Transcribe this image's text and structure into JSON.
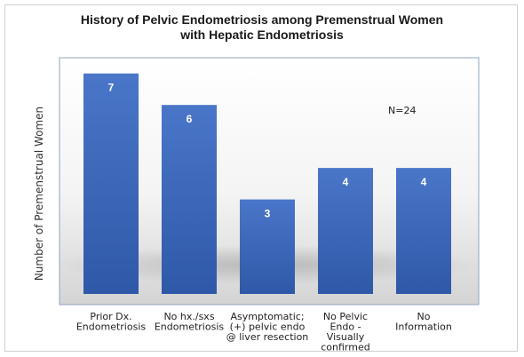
{
  "chart_data": {
    "type": "bar",
    "title_lines": [
      "History of Pelvic Endometriosis among Premenstrual Women",
      "with Hepatic Endometriosis"
    ],
    "ylabel": "Number of Premenstrual Women",
    "xlabel": "",
    "annotation": "N=24",
    "categories": [
      [
        "Prior Dx.",
        "Endometriosis"
      ],
      [
        "No hx./sxs",
        "Endometriosis"
      ],
      [
        "Asymptomatic;",
        "(+) pelvic endo",
        "@ liver resection"
      ],
      [
        "No Pelvic",
        "Endo -",
        "Visually",
        "confirmed"
      ],
      [
        "No",
        "Information"
      ]
    ],
    "values": [
      7,
      6,
      3,
      4,
      4
    ],
    "ylim": [
      0,
      7.5
    ],
    "grid": false,
    "colors": {
      "bar_top": "#4a76c9",
      "bar_bottom": "#2f58a8",
      "plot_bg_top": "#ffffff",
      "plot_bg_bottom": "#d4d4d4",
      "plot_border": "#8fa3c4"
    }
  }
}
